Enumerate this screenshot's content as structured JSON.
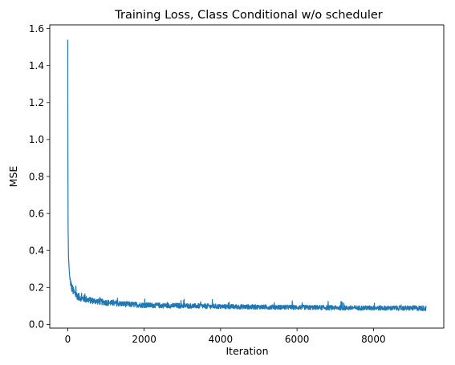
{
  "chart_data": {
    "type": "line",
    "title": "Training Loss, Class Conditional w/o scheduler",
    "xlabel": "Iteration",
    "ylabel": "MSE",
    "xlim": [
      -470,
      9840
    ],
    "ylim": [
      -0.02,
      1.62
    ],
    "xticks": [
      0,
      2000,
      4000,
      6000,
      8000
    ],
    "yticks": [
      0.0,
      0.2,
      0.4,
      0.6,
      0.8,
      1.0,
      1.2,
      1.4,
      1.6
    ],
    "xtick_labels": [
      "0",
      "2000",
      "4000",
      "6000",
      "8000"
    ],
    "ytick_labels": [
      "0.0",
      "0.2",
      "0.4",
      "0.6",
      "0.8",
      "1.0",
      "1.2",
      "1.4",
      "1.6"
    ],
    "grid": false,
    "series": [
      {
        "name": "",
        "color": "#1f77b4",
        "x": [
          0,
          5,
          10,
          20,
          40,
          60,
          100,
          150,
          200,
          300,
          400,
          500,
          600,
          800,
          1000,
          1200,
          1400,
          1600,
          1800,
          2000,
          2400,
          2800,
          3200,
          3600,
          4000,
          4500,
          5000,
          5500,
          6000,
          6500,
          7000,
          7500,
          8000,
          8500,
          9000,
          9380
        ],
        "y": [
          1.54,
          0.9,
          0.53,
          0.37,
          0.29,
          0.24,
          0.2,
          0.175,
          0.16,
          0.145,
          0.138,
          0.133,
          0.128,
          0.122,
          0.117,
          0.113,
          0.11,
          0.107,
          0.105,
          0.103,
          0.101,
          0.1,
          0.099,
          0.097,
          0.095,
          0.094,
          0.093,
          0.092,
          0.091,
          0.09,
          0.089,
          0.088,
          0.088,
          0.087,
          0.087,
          0.086
        ],
        "noise_band": [
          0.04,
          0.035,
          0.035,
          0.05,
          0.05,
          0.06,
          0.05,
          0.05,
          0.045,
          0.04,
          0.038,
          0.036,
          0.035,
          0.033,
          0.032,
          0.031,
          0.03,
          0.03,
          0.029,
          0.029,
          0.028,
          0.028,
          0.027,
          0.027,
          0.026,
          0.026,
          0.025,
          0.025,
          0.025,
          0.025,
          0.025,
          0.025,
          0.025,
          0.025,
          0.026,
          0.03
        ]
      }
    ]
  }
}
